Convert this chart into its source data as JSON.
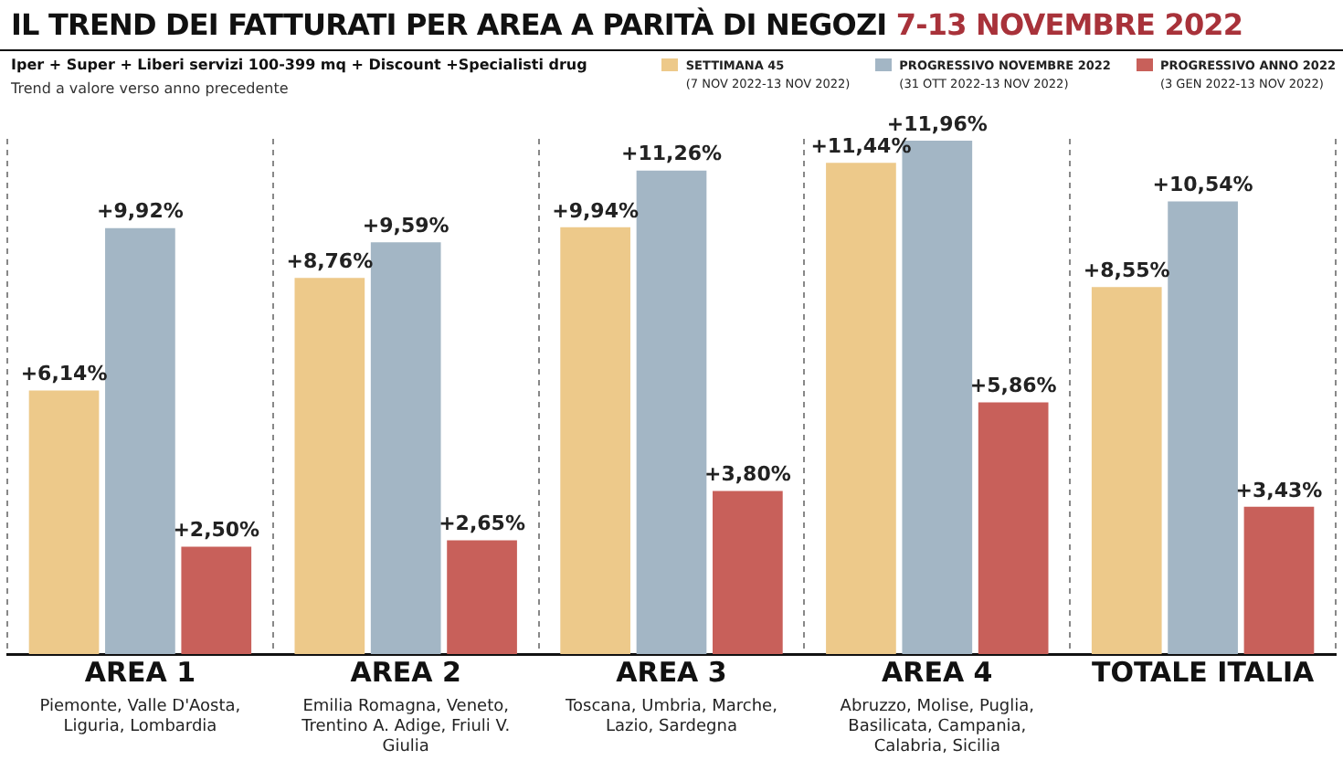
{
  "chart_data": {
    "type": "bar",
    "title": "IL TREND DEI FATTURATI PER AREA A PARITÀ DI NEGOZI 7-13 NOVEMBRE 2022",
    "subtitle": "Iper + Super + Liberi servizi 100-399 mq + Discount +Specialisti drug",
    "annotations": [
      "Trend a valore verso anno precedente",
      "Piemonte, Valle D'Aosta, Liguria, Lombardia",
      "Emilia Romagna, Veneto, Trentino A. Adige, Friuli V. Giulia",
      "Toscana, Umbria, Marche, Lazio, Sardegna",
      "Abruzzo, Molise, Puglia, Basilicata, Campania, Calabria, Sicilia"
    ],
    "categories": [
      "AREA 1",
      "AREA 2",
      "AREA 3",
      "AREA 4",
      "TOTALE ITALIA"
    ],
    "series": [
      {
        "name": "SETTIMANA 45 (7 NOV 2022-13 NOV 2022)",
        "color": "#edc98a",
        "values": [
          6.14,
          8.76,
          9.94,
          11.44,
          8.55
        ],
        "value_labels": [
          "+6,14%",
          "+8,76%",
          "+9,94%",
          "+11,44%",
          "+8,55%"
        ]
      },
      {
        "name": "PROGRESSIVO NOVEMBRE 2022 (31 OTT 2022-13 NOV 2022)",
        "color": "#a3b6c5",
        "values": [
          9.92,
          9.59,
          11.26,
          11.96,
          10.54
        ],
        "value_labels": [
          "+9,92%",
          "+9,59%",
          "+11,26%",
          "+11,96%",
          "+10,54%"
        ]
      },
      {
        "name": "PROGRESSIVO ANNO 2022 (3 GEN 2022-13 NOV 2022)",
        "color": "#c8605a",
        "values": [
          2.5,
          2.65,
          3.8,
          5.86,
          3.43
        ],
        "value_labels": [
          "+2,50%",
          "+2,65%",
          "+3,80%",
          "+5,86%",
          "+3,43%"
        ]
      }
    ],
    "legend": "top right",
    "grid": "x"
  }
}
